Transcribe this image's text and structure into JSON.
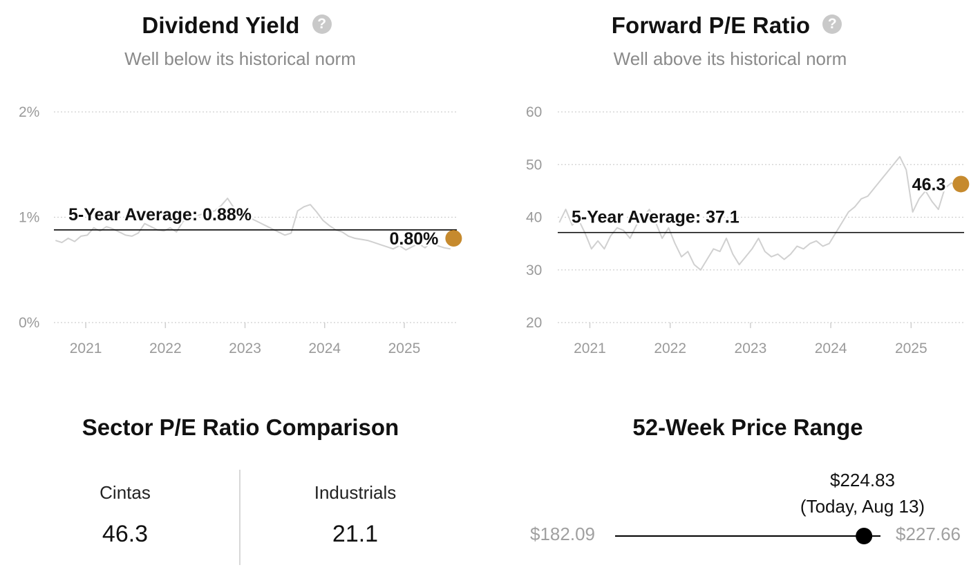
{
  "dividend_yield": {
    "title": "Dividend Yield",
    "subtitle": "Well below its historical norm",
    "help_icon": "question-circle-icon",
    "avg_label": "5-Year Average: 0.88%",
    "current_label": "0.80%"
  },
  "forward_pe": {
    "title": "Forward P/E Ratio",
    "subtitle": "Well above its historical norm",
    "help_icon": "question-circle-icon",
    "avg_label": "5-Year Average: 37.1",
    "current_label": "46.3"
  },
  "sector_comparison": {
    "title": "Sector P/E Ratio Comparison",
    "items": [
      {
        "name": "Cintas",
        "value": "46.3"
      },
      {
        "name": "Industrials",
        "value": "21.1"
      }
    ]
  },
  "price_range": {
    "title": "52-Week Price Range",
    "low_label": "$182.09",
    "high_label": "$227.66",
    "current_price": "$224.83",
    "current_note": "(Today, Aug 13)",
    "low": 182.09,
    "high": 227.66,
    "current": 224.83
  },
  "colors": {
    "accent": "#c68a2e",
    "history_line": "#d0d0d0",
    "average_line": "#000000",
    "grid": "#cfcfcf",
    "marker": "#000000"
  },
  "chart_data": [
    {
      "type": "line",
      "title": "Dividend Yield",
      "y_ticks": [
        "0%",
        "1%",
        "2%"
      ],
      "ylim": [
        0,
        2
      ],
      "x_ticks": [
        "2021",
        "2022",
        "2023",
        "2024",
        "2025"
      ],
      "xlim": [
        2020.6,
        2025.66
      ],
      "grid": true,
      "average": 0.88,
      "current": {
        "x": 2025.62,
        "y": 0.8
      },
      "series": [
        {
          "x": [
            2020.62,
            2020.7,
            2020.78,
            2020.86,
            2020.94,
            2021.02,
            2021.1,
            2021.18,
            2021.26,
            2021.34,
            2021.42,
            2021.5,
            2021.58,
            2021.66,
            2021.74,
            2021.82,
            2021.9,
            2021.98,
            2022.06,
            2022.14,
            2022.22,
            2022.3,
            2022.38,
            2022.46,
            2022.54,
            2022.62,
            2022.7,
            2022.78,
            2022.86,
            2022.94,
            2023.02,
            2023.1,
            2023.18,
            2023.26,
            2023.34,
            2023.42,
            2023.5,
            2023.58,
            2023.66,
            2023.74,
            2023.82,
            2023.9,
            2023.98,
            2024.06,
            2024.14,
            2024.22,
            2024.3,
            2024.38,
            2024.46,
            2024.54,
            2024.62,
            2024.7,
            2024.78,
            2024.86,
            2024.94,
            2025.02,
            2025.1,
            2025.18,
            2025.26,
            2025.34,
            2025.42,
            2025.5,
            2025.58
          ],
          "y": [
            0.78,
            0.76,
            0.8,
            0.77,
            0.82,
            0.83,
            0.9,
            0.87,
            0.91,
            0.89,
            0.86,
            0.83,
            0.82,
            0.85,
            0.94,
            0.91,
            0.88,
            0.87,
            0.9,
            0.86,
            0.96,
            0.98,
            1.01,
            1.03,
            1.05,
            1.06,
            1.11,
            1.18,
            1.09,
            1.04,
            1.02,
            0.98,
            0.95,
            0.92,
            0.89,
            0.86,
            0.83,
            0.85,
            1.06,
            1.1,
            1.12,
            1.05,
            0.97,
            0.92,
            0.88,
            0.86,
            0.82,
            0.8,
            0.79,
            0.78,
            0.76,
            0.74,
            0.72,
            0.7,
            0.73,
            0.69,
            0.72,
            0.75,
            0.71,
            0.76,
            0.73,
            0.71,
            0.7
          ]
        }
      ]
    },
    {
      "type": "line",
      "title": "Forward P/E Ratio",
      "y_ticks": [
        "20",
        "30",
        "40",
        "50",
        "60"
      ],
      "ylim": [
        20,
        60
      ],
      "x_ticks": [
        "2021",
        "2022",
        "2023",
        "2024",
        "2025"
      ],
      "xlim": [
        2020.6,
        2025.66
      ],
      "grid": true,
      "average": 37.1,
      "current": {
        "x": 2025.62,
        "y": 46.3
      },
      "series": [
        {
          "x": [
            2020.62,
            2020.7,
            2020.78,
            2020.86,
            2020.94,
            2021.02,
            2021.1,
            2021.18,
            2021.26,
            2021.34,
            2021.42,
            2021.5,
            2021.58,
            2021.66,
            2021.74,
            2021.82,
            2021.9,
            2021.98,
            2022.06,
            2022.14,
            2022.22,
            2022.3,
            2022.38,
            2022.46,
            2022.54,
            2022.62,
            2022.7,
            2022.78,
            2022.86,
            2022.94,
            2023.02,
            2023.1,
            2023.18,
            2023.26,
            2023.34,
            2023.42,
            2023.5,
            2023.58,
            2023.66,
            2023.74,
            2023.82,
            2023.9,
            2023.98,
            2024.06,
            2024.14,
            2024.22,
            2024.3,
            2024.38,
            2024.46,
            2024.54,
            2024.62,
            2024.7,
            2024.78,
            2024.86,
            2024.94,
            2025.02,
            2025.1,
            2025.18,
            2025.26,
            2025.34,
            2025.42,
            2025.5,
            2025.58
          ],
          "y": [
            39.0,
            41.5,
            38.5,
            39.5,
            37.0,
            34.0,
            35.5,
            34.0,
            36.5,
            38.0,
            37.5,
            36.0,
            38.5,
            40.0,
            41.5,
            39.0,
            36.0,
            38.0,
            35.0,
            32.5,
            33.5,
            31.0,
            30.0,
            32.0,
            34.0,
            33.5,
            36.0,
            33.0,
            31.0,
            32.5,
            34.0,
            36.0,
            33.5,
            32.5,
            33.0,
            32.0,
            33.0,
            34.5,
            34.0,
            35.0,
            35.5,
            34.5,
            35.0,
            37.0,
            39.0,
            41.0,
            42.0,
            43.5,
            44.0,
            45.5,
            47.0,
            48.5,
            50.0,
            51.5,
            49.0,
            41.0,
            43.5,
            45.0,
            43.0,
            41.5,
            45.5,
            46.5,
            46.0
          ]
        }
      ]
    }
  ]
}
